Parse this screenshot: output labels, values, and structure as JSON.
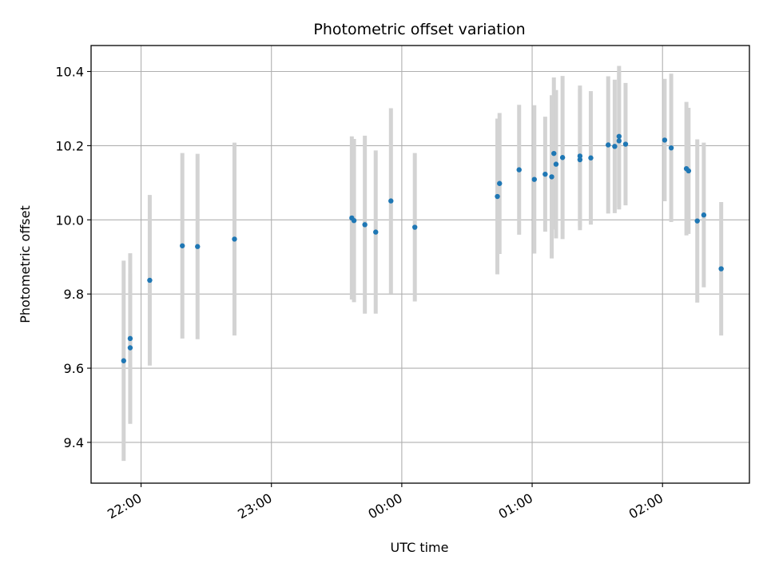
{
  "chart_data": {
    "type": "scatter",
    "title": "Photometric offset variation",
    "xlabel": "UTC time",
    "ylabel": "Photometric offset",
    "grid": true,
    "x_unit": "UTC time of day (HH:MM)",
    "xlim": [
      "21:37",
      "02:40"
    ],
    "ylim": [
      9.29,
      10.47
    ],
    "x_ticks": [
      "22:00",
      "23:00",
      "00:00",
      "01:00",
      "02:00"
    ],
    "y_ticks": [
      "9.4",
      "9.6",
      "9.8",
      "10.0",
      "10.2",
      "10.4"
    ],
    "point_color": "#1f77b4",
    "errorbar_color": "#d3d3d3",
    "series": [
      {
        "points": [
          {
            "t": "21:52",
            "y": 9.62,
            "err": 0.27
          },
          {
            "t": "21:55",
            "y": 9.655,
            "err": 0.2
          },
          {
            "t": "21:55",
            "y": 9.68,
            "err": 0.23
          },
          {
            "t": "22:04",
            "y": 9.837,
            "err": 0.23
          },
          {
            "t": "22:19",
            "y": 9.93,
            "err": 0.25
          },
          {
            "t": "22:26",
            "y": 9.928,
            "err": 0.25
          },
          {
            "t": "22:43",
            "y": 9.948,
            "err": 0.26
          },
          {
            "t": "23:37",
            "y": 10.005,
            "err": 0.22
          },
          {
            "t": "23:38",
            "y": 9.998,
            "err": 0.22
          },
          {
            "t": "23:43",
            "y": 9.987,
            "err": 0.24
          },
          {
            "t": "23:48",
            "y": 9.967,
            "err": 0.22
          },
          {
            "t": "23:55",
            "y": 10.051,
            "err": 0.25
          },
          {
            "t": "00:06",
            "y": 9.98,
            "err": 0.2
          },
          {
            "t": "00:44",
            "y": 10.063,
            "err": 0.21
          },
          {
            "t": "00:45",
            "y": 10.098,
            "err": 0.19
          },
          {
            "t": "00:54",
            "y": 10.135,
            "err": 0.175
          },
          {
            "t": "01:01",
            "y": 10.109,
            "err": 0.2
          },
          {
            "t": "01:06",
            "y": 10.123,
            "err": 0.155
          },
          {
            "t": "01:09",
            "y": 10.116,
            "err": 0.22
          },
          {
            "t": "01:10",
            "y": 10.179,
            "err": 0.205
          },
          {
            "t": "01:11",
            "y": 10.15,
            "err": 0.2
          },
          {
            "t": "01:14",
            "y": 10.168,
            "err": 0.22
          },
          {
            "t": "01:22",
            "y": 10.162,
            "err": 0.19
          },
          {
            "t": "01:22",
            "y": 10.172,
            "err": 0.19
          },
          {
            "t": "01:27",
            "y": 10.167,
            "err": 0.18
          },
          {
            "t": "01:35",
            "y": 10.202,
            "err": 0.185
          },
          {
            "t": "01:38",
            "y": 10.198,
            "err": 0.18
          },
          {
            "t": "01:40",
            "y": 10.225,
            "err": 0.19
          },
          {
            "t": "01:40",
            "y": 10.213,
            "err": 0.185
          },
          {
            "t": "01:43",
            "y": 10.204,
            "err": 0.165
          },
          {
            "t": "02:01",
            "y": 10.215,
            "err": 0.165
          },
          {
            "t": "02:04",
            "y": 10.194,
            "err": 0.2
          },
          {
            "t": "02:11",
            "y": 10.138,
            "err": 0.18
          },
          {
            "t": "02:12",
            "y": 10.132,
            "err": 0.17
          },
          {
            "t": "02:16",
            "y": 9.997,
            "err": 0.22
          },
          {
            "t": "02:19",
            "y": 10.013,
            "err": 0.195
          },
          {
            "t": "02:27",
            "y": 9.868,
            "err": 0.18
          }
        ]
      }
    ]
  }
}
